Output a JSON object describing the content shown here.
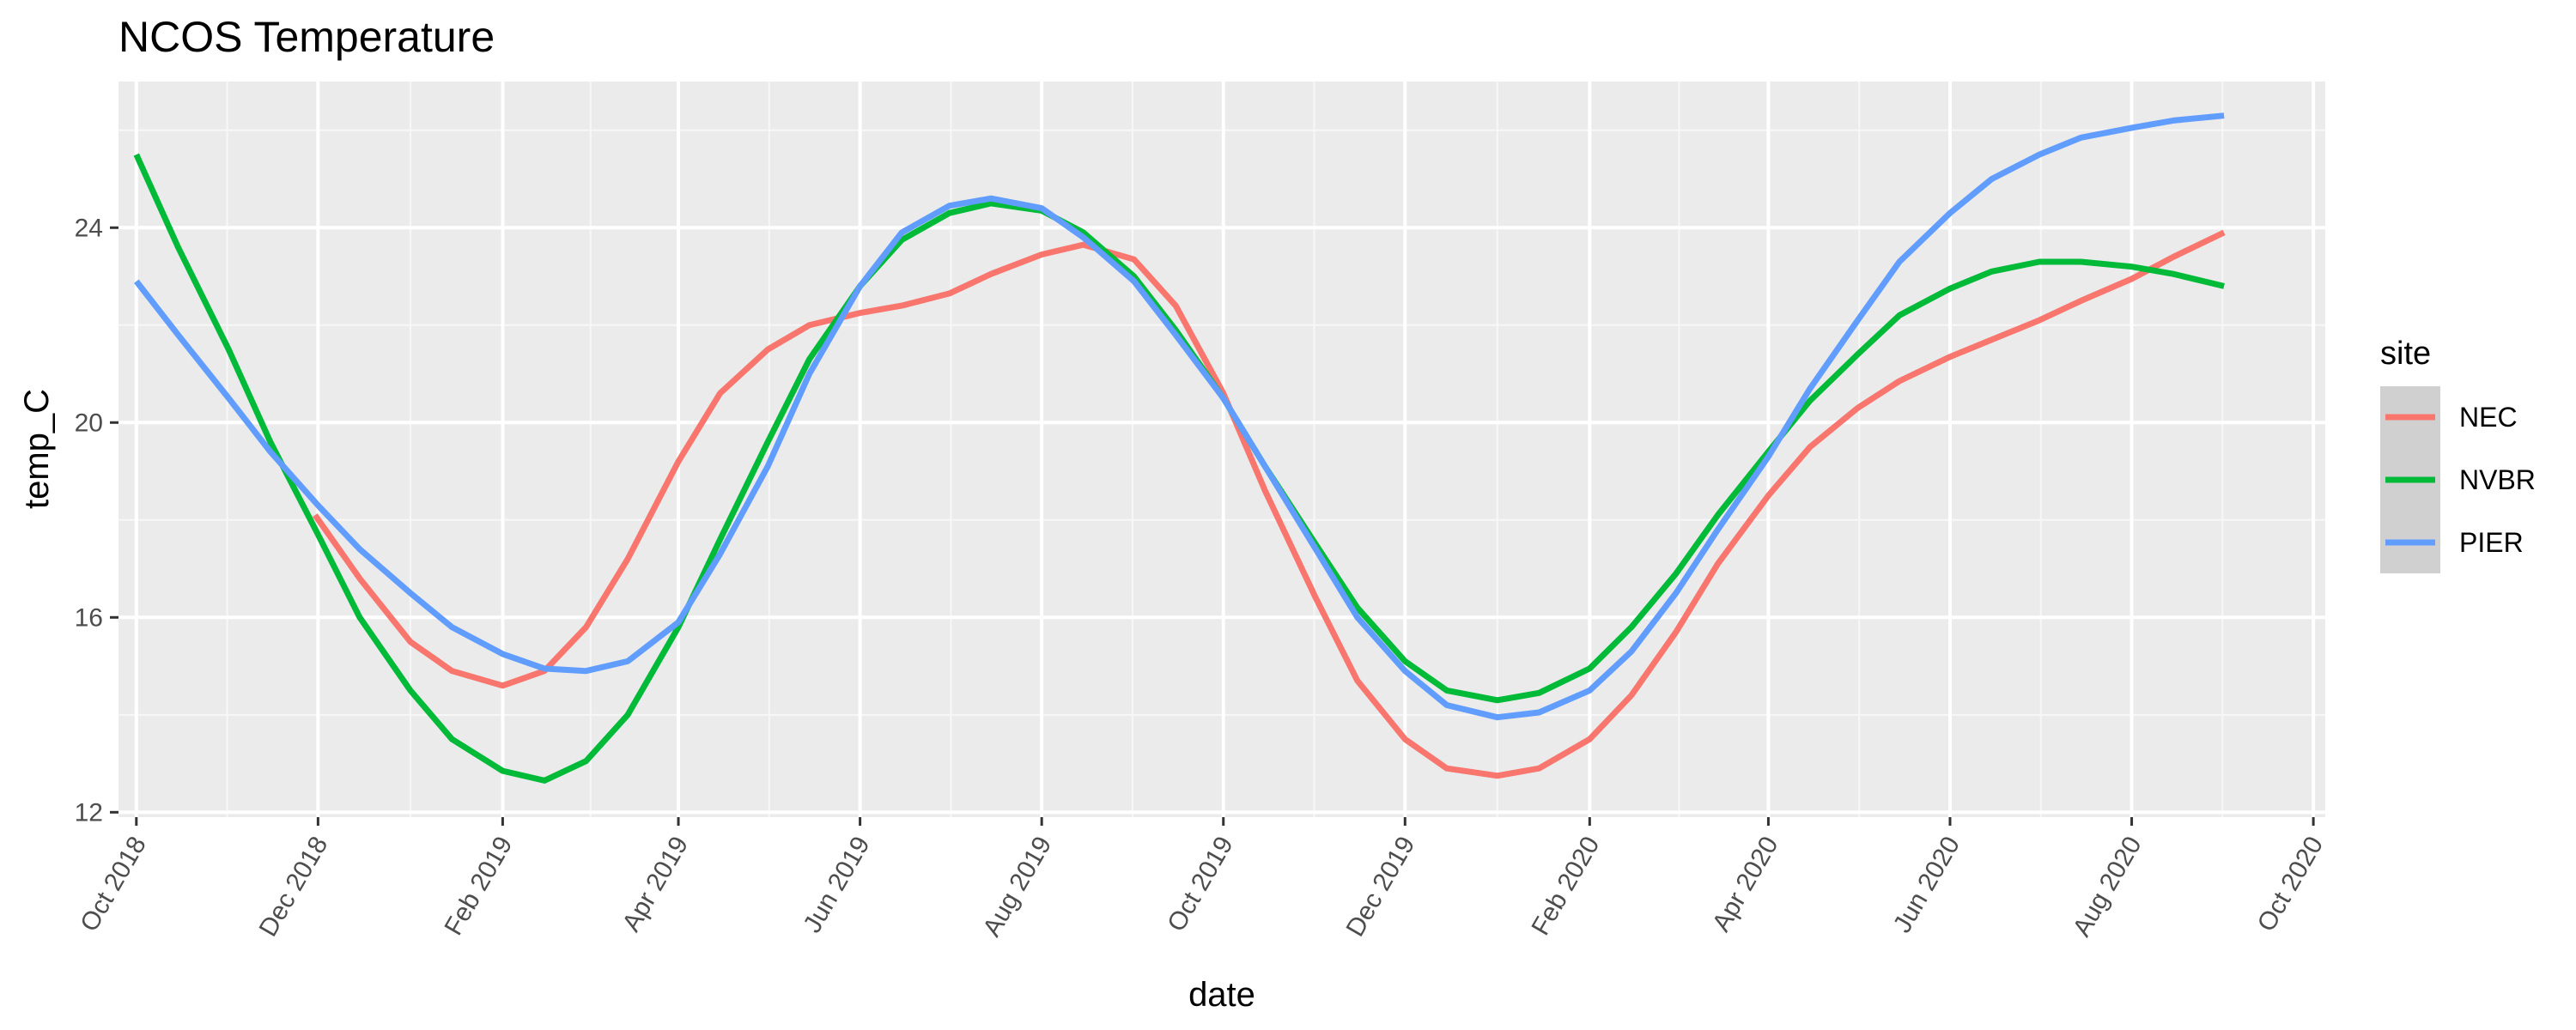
{
  "chart_data": {
    "type": "line",
    "title": "NCOS Temperature",
    "xlabel": "date",
    "ylabel": "temp_C",
    "x_axis": "date",
    "xlim": [
      "2018-09-25",
      "2020-10-05"
    ],
    "ylim": [
      11.9,
      27.0
    ],
    "x_ticks": [
      "2018-10-01",
      "2018-12-01",
      "2019-02-01",
      "2019-04-01",
      "2019-06-01",
      "2019-08-01",
      "2019-10-01",
      "2019-12-01",
      "2020-02-01",
      "2020-04-01",
      "2020-06-01",
      "2020-08-01",
      "2020-10-01"
    ],
    "x_tick_labels": [
      "Oct 2018",
      "Dec 2018",
      "Feb 2019",
      "Apr 2019",
      "Jun 2019",
      "Aug 2019",
      "Oct 2019",
      "Dec 2019",
      "Feb 2020",
      "Apr 2020",
      "Jun 2020",
      "Aug 2020",
      "Oct 2020"
    ],
    "y_ticks": [
      12,
      16,
      20,
      24
    ],
    "grid": true,
    "legend": {
      "title": "site",
      "position": "right"
    },
    "series": [
      {
        "name": "NEC",
        "color": "#F8766D",
        "points": [
          [
            "2018-11-30",
            18.1
          ],
          [
            "2018-12-15",
            16.8
          ],
          [
            "2019-01-01",
            15.5
          ],
          [
            "2019-01-15",
            14.9
          ],
          [
            "2019-02-01",
            14.6
          ],
          [
            "2019-02-15",
            14.9
          ],
          [
            "2019-03-01",
            15.8
          ],
          [
            "2019-03-15",
            17.2
          ],
          [
            "2019-04-01",
            19.2
          ],
          [
            "2019-04-15",
            20.6
          ],
          [
            "2019-05-01",
            21.5
          ],
          [
            "2019-05-15",
            22.0
          ],
          [
            "2019-06-01",
            22.25
          ],
          [
            "2019-06-15",
            22.4
          ],
          [
            "2019-07-01",
            22.65
          ],
          [
            "2019-07-15",
            23.05
          ],
          [
            "2019-08-01",
            23.45
          ],
          [
            "2019-08-15",
            23.65
          ],
          [
            "2019-09-01",
            23.35
          ],
          [
            "2019-09-15",
            22.4
          ],
          [
            "2019-10-01",
            20.6
          ],
          [
            "2019-10-15",
            18.6
          ],
          [
            "2019-11-01",
            16.4
          ],
          [
            "2019-11-15",
            14.7
          ],
          [
            "2019-12-01",
            13.5
          ],
          [
            "2019-12-15",
            12.9
          ],
          [
            "2020-01-01",
            12.75
          ],
          [
            "2020-01-15",
            12.9
          ],
          [
            "2020-02-01",
            13.5
          ],
          [
            "2020-02-15",
            14.4
          ],
          [
            "2020-03-01",
            15.7
          ],
          [
            "2020-03-15",
            17.1
          ],
          [
            "2020-04-01",
            18.5
          ],
          [
            "2020-04-15",
            19.5
          ],
          [
            "2020-05-01",
            20.3
          ],
          [
            "2020-05-15",
            20.85
          ],
          [
            "2020-06-01",
            21.35
          ],
          [
            "2020-06-15",
            21.7
          ],
          [
            "2020-07-01",
            22.1
          ],
          [
            "2020-07-15",
            22.5
          ],
          [
            "2020-08-01",
            22.95
          ],
          [
            "2020-08-15",
            23.4
          ],
          [
            "2020-09-01",
            23.9
          ]
        ]
      },
      {
        "name": "NVBR",
        "color": "#00BA38",
        "points": [
          [
            "2018-10-01",
            25.5
          ],
          [
            "2018-10-15",
            23.6
          ],
          [
            "2018-11-01",
            21.5
          ],
          [
            "2018-11-15",
            19.6
          ],
          [
            "2018-12-01",
            17.7
          ],
          [
            "2018-12-15",
            16.0
          ],
          [
            "2019-01-01",
            14.5
          ],
          [
            "2019-01-15",
            13.5
          ],
          [
            "2019-02-01",
            12.85
          ],
          [
            "2019-02-15",
            12.65
          ],
          [
            "2019-03-01",
            13.05
          ],
          [
            "2019-03-15",
            14.0
          ],
          [
            "2019-04-01",
            15.8
          ],
          [
            "2019-04-15",
            17.6
          ],
          [
            "2019-05-01",
            19.6
          ],
          [
            "2019-05-15",
            21.3
          ],
          [
            "2019-06-01",
            22.8
          ],
          [
            "2019-06-15",
            23.75
          ],
          [
            "2019-07-01",
            24.3
          ],
          [
            "2019-07-15",
            24.5
          ],
          [
            "2019-08-01",
            24.35
          ],
          [
            "2019-08-15",
            23.9
          ],
          [
            "2019-09-01",
            23.0
          ],
          [
            "2019-09-15",
            21.9
          ],
          [
            "2019-10-01",
            20.5
          ],
          [
            "2019-10-15",
            19.1
          ],
          [
            "2019-11-01",
            17.5
          ],
          [
            "2019-11-15",
            16.2
          ],
          [
            "2019-12-01",
            15.1
          ],
          [
            "2019-12-15",
            14.5
          ],
          [
            "2020-01-01",
            14.3
          ],
          [
            "2020-01-15",
            14.45
          ],
          [
            "2020-02-01",
            14.95
          ],
          [
            "2020-02-15",
            15.8
          ],
          [
            "2020-03-01",
            16.9
          ],
          [
            "2020-03-15",
            18.1
          ],
          [
            "2020-04-01",
            19.4
          ],
          [
            "2020-04-15",
            20.45
          ],
          [
            "2020-05-01",
            21.4
          ],
          [
            "2020-05-15",
            22.2
          ],
          [
            "2020-06-01",
            22.75
          ],
          [
            "2020-06-15",
            23.1
          ],
          [
            "2020-07-01",
            23.3
          ],
          [
            "2020-07-15",
            23.3
          ],
          [
            "2020-08-01",
            23.2
          ],
          [
            "2020-08-15",
            23.05
          ],
          [
            "2020-09-01",
            22.8
          ]
        ]
      },
      {
        "name": "PIER",
        "color": "#619CFF",
        "points": [
          [
            "2018-10-01",
            22.9
          ],
          [
            "2018-10-15",
            21.8
          ],
          [
            "2018-11-01",
            20.5
          ],
          [
            "2018-11-15",
            19.4
          ],
          [
            "2018-12-01",
            18.3
          ],
          [
            "2018-12-15",
            17.4
          ],
          [
            "2019-01-01",
            16.5
          ],
          [
            "2019-01-15",
            15.8
          ],
          [
            "2019-02-01",
            15.25
          ],
          [
            "2019-02-15",
            14.95
          ],
          [
            "2019-03-01",
            14.9
          ],
          [
            "2019-03-15",
            15.1
          ],
          [
            "2019-04-01",
            15.9
          ],
          [
            "2019-04-15",
            17.3
          ],
          [
            "2019-05-01",
            19.1
          ],
          [
            "2019-05-15",
            21.0
          ],
          [
            "2019-06-01",
            22.8
          ],
          [
            "2019-06-15",
            23.9
          ],
          [
            "2019-07-01",
            24.45
          ],
          [
            "2019-07-15",
            24.6
          ],
          [
            "2019-08-01",
            24.4
          ],
          [
            "2019-08-15",
            23.8
          ],
          [
            "2019-09-01",
            22.9
          ],
          [
            "2019-09-15",
            21.8
          ],
          [
            "2019-10-01",
            20.5
          ],
          [
            "2019-10-15",
            19.1
          ],
          [
            "2019-11-01",
            17.4
          ],
          [
            "2019-11-15",
            16.0
          ],
          [
            "2019-12-01",
            14.9
          ],
          [
            "2019-12-15",
            14.2
          ],
          [
            "2020-01-01",
            13.95
          ],
          [
            "2020-01-15",
            14.05
          ],
          [
            "2020-02-01",
            14.5
          ],
          [
            "2020-02-15",
            15.3
          ],
          [
            "2020-03-01",
            16.5
          ],
          [
            "2020-03-15",
            17.8
          ],
          [
            "2020-04-01",
            19.3
          ],
          [
            "2020-04-15",
            20.7
          ],
          [
            "2020-05-01",
            22.1
          ],
          [
            "2020-05-15",
            23.3
          ],
          [
            "2020-06-01",
            24.3
          ],
          [
            "2020-06-15",
            25.0
          ],
          [
            "2020-07-01",
            25.5
          ],
          [
            "2020-07-15",
            25.85
          ],
          [
            "2020-08-01",
            26.05
          ],
          [
            "2020-08-15",
            26.2
          ],
          [
            "2020-09-01",
            26.3
          ]
        ]
      }
    ]
  }
}
